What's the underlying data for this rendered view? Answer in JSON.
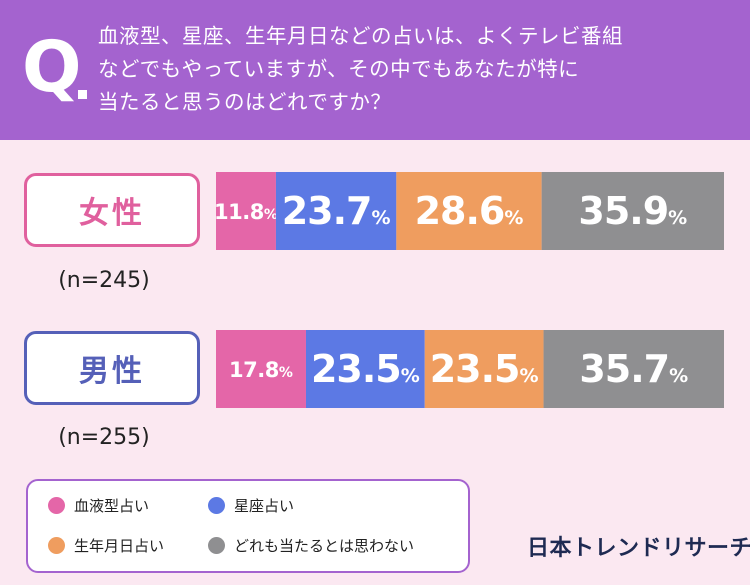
{
  "question": {
    "prefix": "Q",
    "lines": [
      "血液型、星座、生年月日などの占いは、よくテレビ番組",
      "などでもやっていますが、その中でもあなたが特に",
      "当たると思うのはどれですか？"
    ]
  },
  "colors": {
    "header": "#a463cf",
    "background": "#fbe8f1",
    "female_border": "#e0609e",
    "male_border": "#5560b8"
  },
  "chart_data": {
    "type": "bar",
    "stacked": true,
    "orientation": "horizontal",
    "unit": "%",
    "categories": [
      "女性",
      "男性"
    ],
    "sample_sizes": [
      "(n=245)",
      "(n=255)"
    ],
    "series": [
      {
        "name": "血液型占い",
        "color": "#e466a8",
        "values": [
          11.8,
          17.8
        ]
      },
      {
        "name": "星座占い",
        "color": "#5c79e4",
        "values": [
          23.7,
          23.5
        ]
      },
      {
        "name": "生年月日占い",
        "color": "#ef9d5f",
        "values": [
          28.6,
          23.5
        ]
      },
      {
        "name": "どれも当たるとは思わない",
        "color": "#8f8f91",
        "values": [
          35.9,
          35.7
        ]
      }
    ]
  },
  "brand": "日本トレンドリサーチ"
}
